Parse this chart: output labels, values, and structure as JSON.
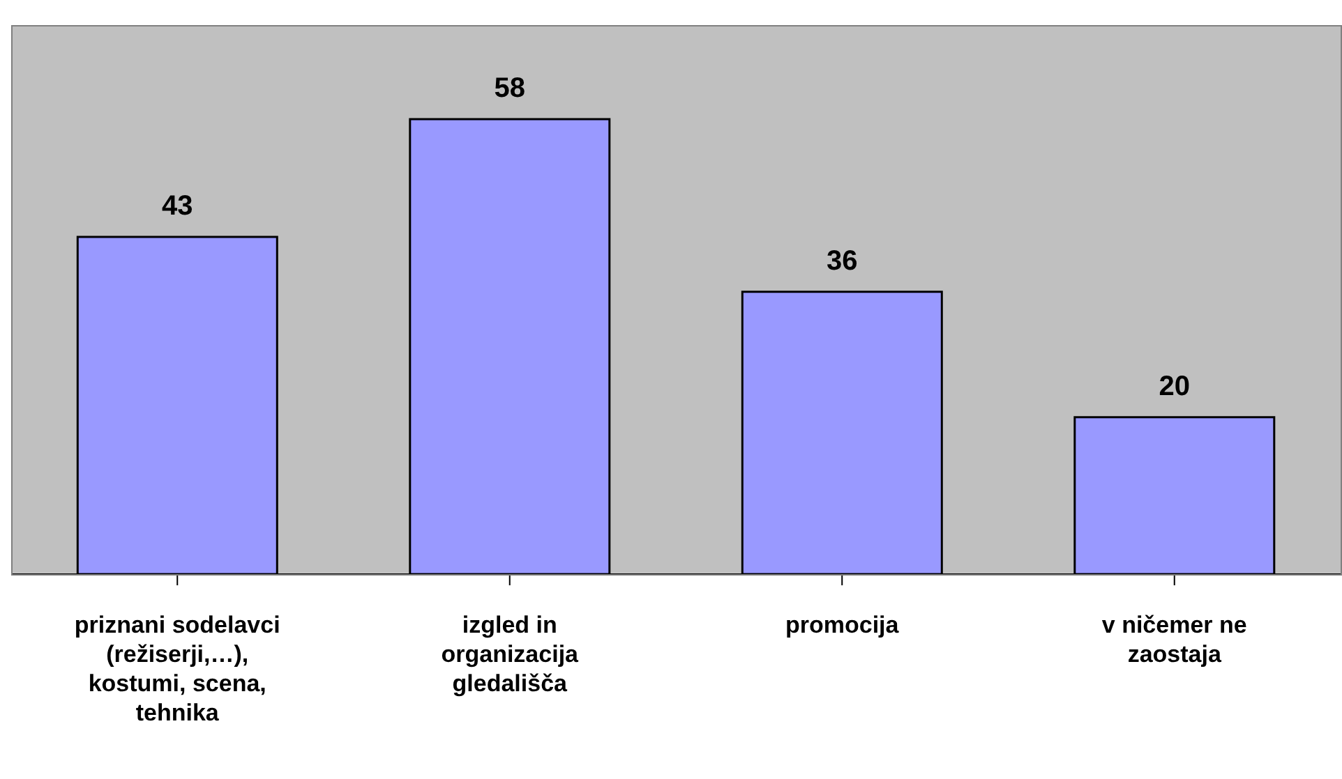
{
  "chart_data": {
    "type": "bar",
    "categories": [
      "priznani sodelavci (režiserji,…), kostumi, scena, tehnika",
      "izgled in organizacija gledališča",
      "promocija",
      "v ničemer ne zaostaja"
    ],
    "values": [
      43,
      58,
      36,
      20
    ],
    "color": "#9999ff",
    "ylim": [
      0,
      70
    ],
    "data_labels": true,
    "grid": false
  }
}
